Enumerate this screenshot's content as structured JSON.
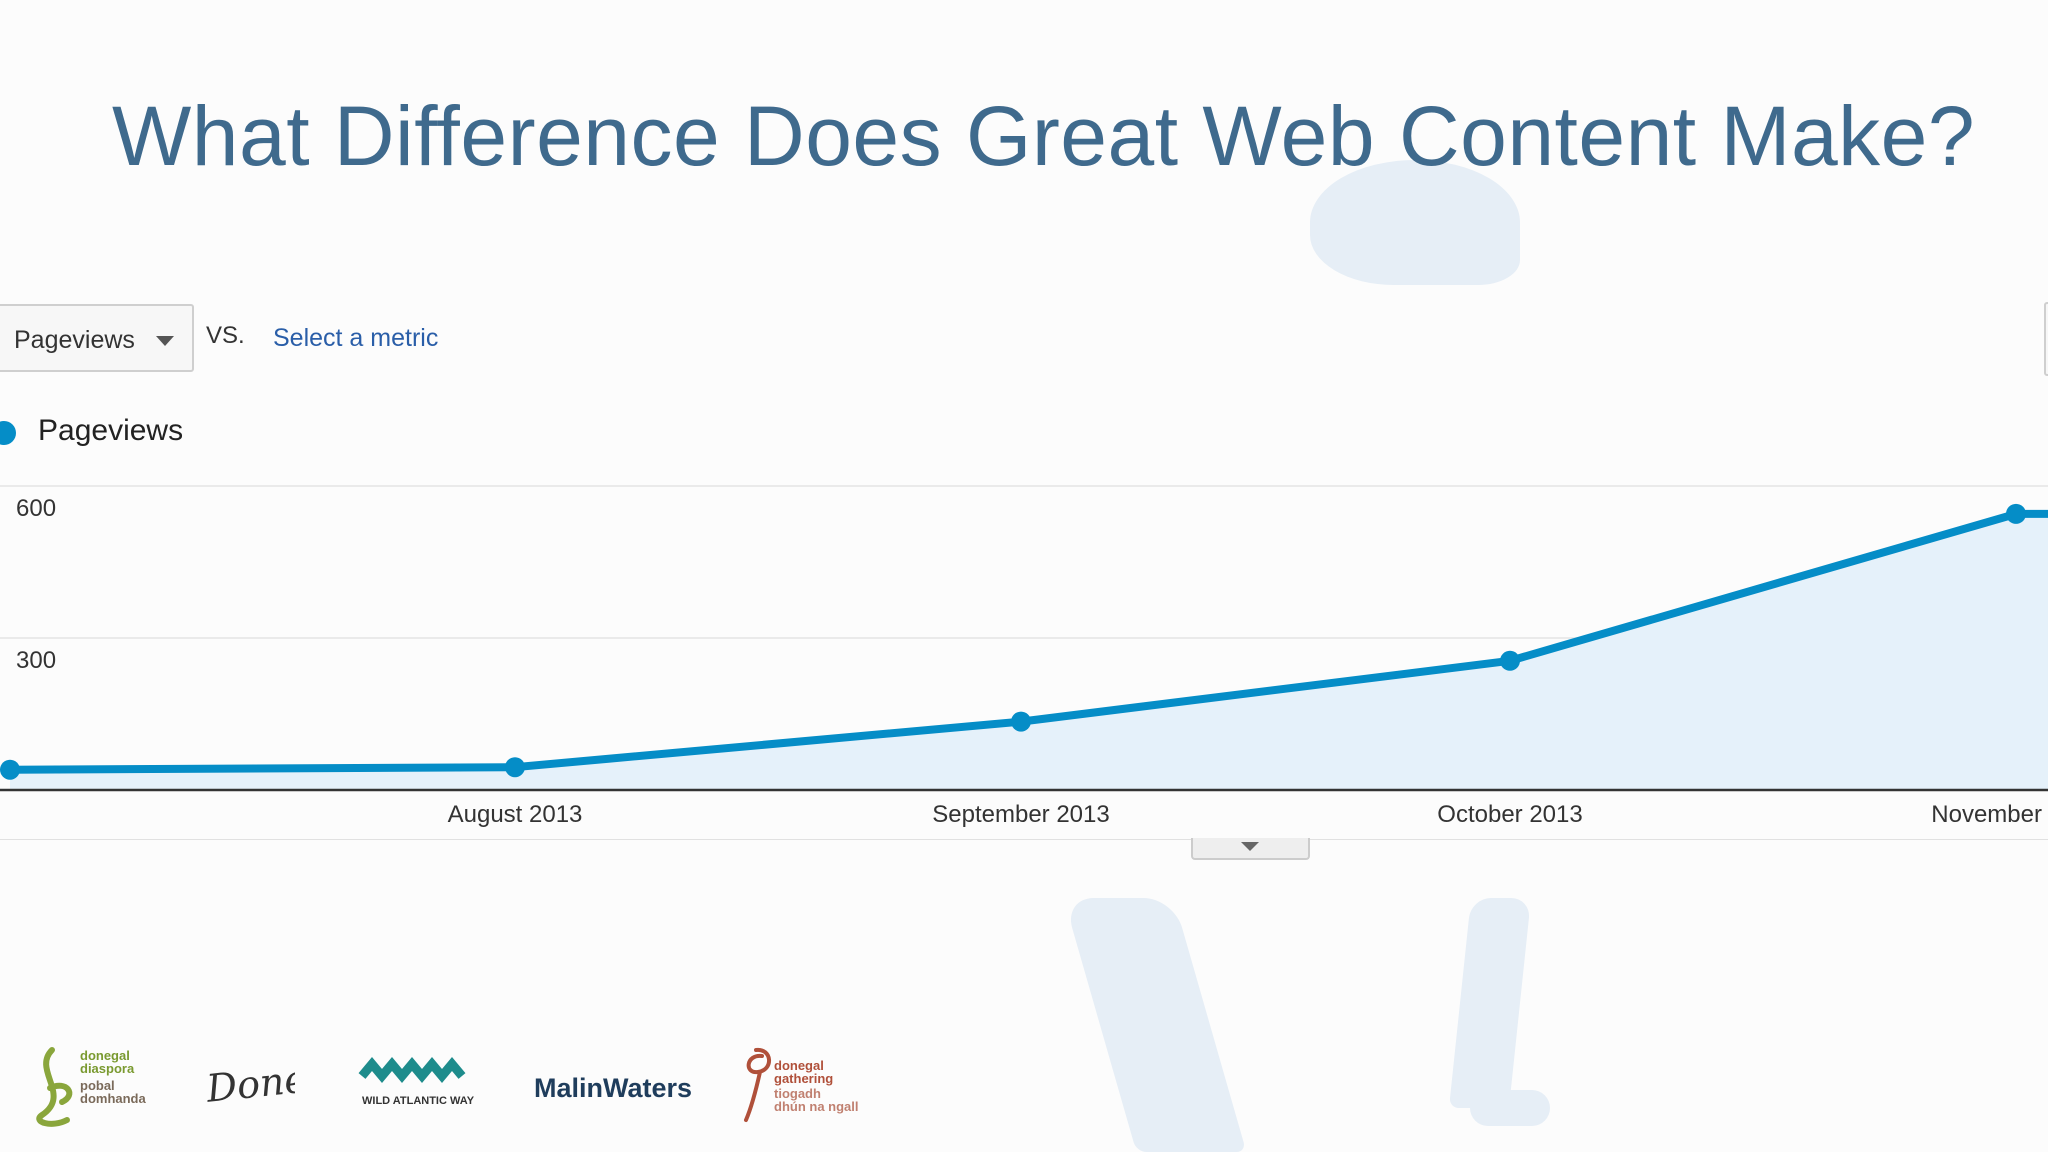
{
  "slide": {
    "title": "What Difference Does Great Web Content Make?"
  },
  "toolbar": {
    "metric_label": "Pageviews",
    "vs_label": "VS.",
    "select_metric_label": "Select a metric"
  },
  "legend": {
    "label": "Pageviews",
    "color": "#058dc7"
  },
  "chart_data": {
    "type": "area",
    "series": [
      {
        "name": "Pageviews",
        "color": "#058dc7",
        "points": [
          {
            "x": "2013-07-01",
            "y": 40
          },
          {
            "x": "2013-08-01",
            "y": 45
          },
          {
            "x": "2013-09-01",
            "y": 135
          },
          {
            "x": "2013-10-01",
            "y": 255
          },
          {
            "x": "2013-11-01",
            "y": 545
          }
        ]
      }
    ],
    "x_tick_labels": [
      "August 2013",
      "September 2013",
      "October 2013",
      "November"
    ],
    "y_tick_labels": [
      "600",
      "300"
    ],
    "ylim": [
      0,
      600
    ],
    "grid": true
  },
  "logos": [
    {
      "name": "donegal-diaspora-logo",
      "text": [
        "donegal",
        "diaspora",
        "pobal",
        "domhanda"
      ]
    },
    {
      "name": "donegal-logo",
      "text": [
        "Donegal"
      ]
    },
    {
      "name": "wild-atlantic-way-logo",
      "text": [
        "WILD ATLANTIC WAY"
      ]
    },
    {
      "name": "malin-waters-logo",
      "text": [
        "MalinWaters"
      ]
    },
    {
      "name": "donegal-gathering-logo",
      "text": [
        "donegal",
        "gathering",
        "tiogadh",
        "dhún na ngall"
      ]
    }
  ]
}
